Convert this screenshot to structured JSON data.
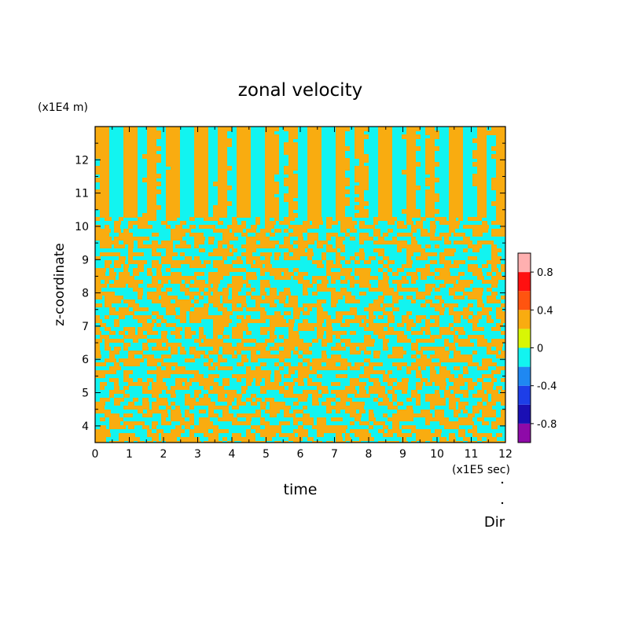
{
  "chart_data": {
    "type": "heatmap",
    "title": "zonal velocity",
    "xlabel": "time",
    "ylabel": "z-coordinate",
    "x_unit": "(x1E5 sec)",
    "y_unit": "(x1E4 m)",
    "xlim": [
      0,
      12
    ],
    "ylim": [
      3.5,
      13
    ],
    "x_ticks": [
      "0",
      "1",
      "2",
      "3",
      "4",
      "5",
      "6",
      "7",
      "8",
      "9",
      "10",
      "11",
      "12"
    ],
    "y_ticks": [
      "4",
      "5",
      "6",
      "7",
      "8",
      "9",
      "10",
      "11",
      "12"
    ],
    "dominant_values": [
      -0.2,
      0.2
    ],
    "colorbar": {
      "range": [
        -1.0,
        1.0
      ],
      "levels": [
        -1.0,
        -0.8,
        -0.6,
        -0.4,
        -0.2,
        0.0,
        0.2,
        0.4,
        0.6,
        0.8,
        1.0
      ],
      "colors": [
        "#8e0aa8",
        "#1a0fb4",
        "#1d3ee8",
        "#1f88f2",
        "#12f4f0",
        "#d8f605",
        "#f9ac10",
        "#ff5410",
        "#ff1010",
        "#ffb0b0"
      ],
      "tick_labels": [
        "0.8",
        "0.4",
        "0",
        "-0.4",
        "-0.8"
      ],
      "tick_values": [
        0.8,
        0.4,
        0.0,
        -0.4,
        -0.8
      ]
    },
    "grid": false,
    "legend": "right colorbar"
  },
  "footer": {
    "label": "Dir"
  }
}
